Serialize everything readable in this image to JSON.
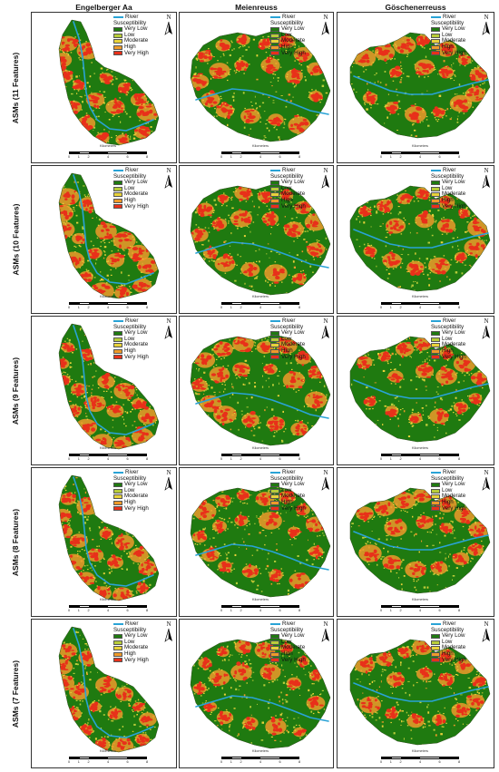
{
  "columns": [
    "Engelberger Aa",
    "Meienreuss",
    "Göschenerreuss"
  ],
  "rows": [
    "ASMs (11 Features)",
    "ASMs (10 Features)",
    "ASMs (9 Features)",
    "ASMs (8 Features)",
    "ASMs (7 Features)"
  ],
  "legend": {
    "river_label": "River",
    "title": "Susceptibility",
    "classes": [
      {
        "label": "Very Low",
        "color": "#1f7a10"
      },
      {
        "label": "Low",
        "color": "#b8cc3a"
      },
      {
        "label": "Moderate",
        "color": "#e8d23a"
      },
      {
        "label": "High",
        "color": "#ee9a2a"
      },
      {
        "label": "Very High",
        "color": "#e8301a"
      }
    ]
  },
  "north_label": "N",
  "scale": {
    "unit": "Kilometers",
    "ticks": [
      "0",
      "1",
      "2",
      "4",
      "6",
      "8"
    ]
  },
  "colors": {
    "river": "#29a3d6",
    "border": "#333333"
  }
}
